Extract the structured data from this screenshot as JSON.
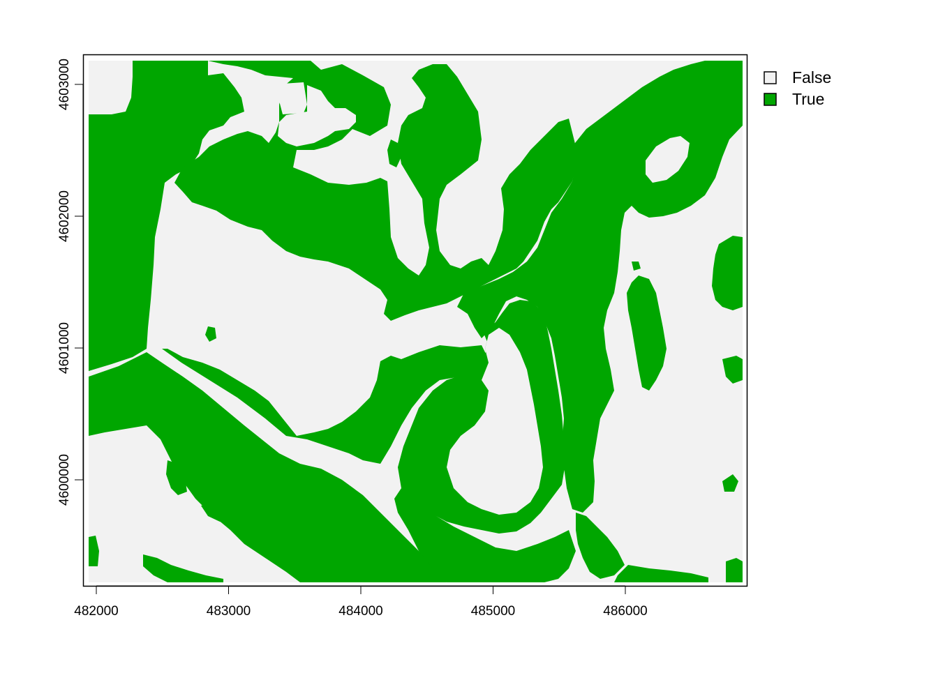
{
  "map": {
    "x_ticks": [
      "482000",
      "483000",
      "484000",
      "485000",
      "486000"
    ],
    "y_ticks": [
      "4600000",
      "4601000",
      "4602000",
      "4603000"
    ],
    "colors": {
      "false": "#f2f2f2",
      "true": "#00a600",
      "frame": "#000000",
      "text": "#000000"
    }
  },
  "legend": {
    "placement": "top-right",
    "items": [
      {
        "label": "False",
        "color": "#f2f2f2"
      },
      {
        "label": "True",
        "color": "#00a600"
      }
    ]
  }
}
